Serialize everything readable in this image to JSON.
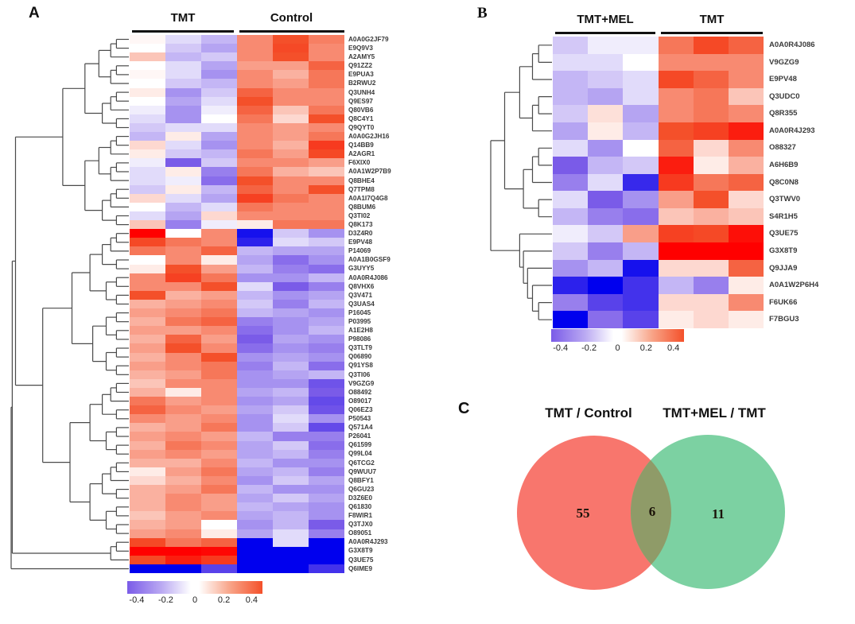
{
  "figure": {
    "panels": {
      "a_label": "A",
      "b_label": "B",
      "c_label": "C"
    }
  },
  "chart_data": [
    {
      "type": "heatmap",
      "panel": "A",
      "col_groups": [
        {
          "label": "TMT",
          "cols": 3
        },
        {
          "label": "Control",
          "cols": 3
        }
      ],
      "rows": [
        "A0A0G2JF79",
        "E9Q9V3",
        "A2AMY5",
        "Q91ZZ2",
        "E9PUA3",
        "B2RWU2",
        "Q3UNH4",
        "Q9ES97",
        "Q80VB6",
        "Q8C4Y1",
        "Q9QYT0",
        "A0A0G2JH16",
        "Q14BB9",
        "A2AGR1",
        "F6XIX0",
        "A0A1W2P7B9",
        "Q8BHE4",
        "Q7TPM8",
        "A0A1I7Q4G8",
        "Q8BUM6",
        "Q3TI02",
        "Q8K173",
        "D3Z4R0",
        "E9PV48",
        "P14069",
        "A0A1B0GSF9",
        "G3UYY5",
        "A0A0R4J086",
        "Q8VHX6",
        "Q3V471",
        "Q3UAS4",
        "P16045",
        "P03995",
        "A1E2H8",
        "P98086",
        "Q3TLT9",
        "Q06890",
        "Q91YS8",
        "Q3TI06",
        "V9GZG9",
        "O88492",
        "O89017",
        "Q06EZ3",
        "P50543",
        "Q571A4",
        "P26041",
        "Q61599",
        "Q99L04",
        "Q6TCG2",
        "Q9WUU7",
        "Q8BFY1",
        "Q6GU23",
        "D3Z6E0",
        "Q61830",
        "F8WIR1",
        "Q3TJX0",
        "O89051",
        "A0A0R4J293",
        "G3X8T9",
        "Q3UE75",
        "Q6IME9"
      ],
      "values": [
        [
          0.02,
          -0.1,
          -0.2,
          0.3,
          0.45,
          0.33
        ],
        [
          0.0,
          -0.15,
          -0.25,
          0.3,
          0.5,
          0.3
        ],
        [
          0.15,
          -0.2,
          -0.15,
          0.3,
          0.45,
          0.3
        ],
        [
          0.0,
          -0.1,
          -0.25,
          0.25,
          0.25,
          0.4
        ],
        [
          0.02,
          -0.1,
          -0.3,
          0.3,
          0.2,
          0.35
        ],
        [
          0.0,
          -0.15,
          -0.2,
          0.3,
          0.25,
          0.35
        ],
        [
          0.05,
          -0.3,
          -0.15,
          0.4,
          0.3,
          0.3
        ],
        [
          0.0,
          -0.25,
          -0.1,
          0.45,
          0.3,
          0.3
        ],
        [
          -0.05,
          -0.3,
          -0.05,
          0.4,
          0.15,
          0.35
        ],
        [
          -0.1,
          -0.3,
          0.0,
          0.35,
          0.1,
          0.45
        ],
        [
          -0.15,
          -0.1,
          -0.1,
          0.3,
          0.25,
          0.3
        ],
        [
          -0.2,
          0.05,
          -0.25,
          0.3,
          0.25,
          0.35
        ],
        [
          0.1,
          -0.1,
          -0.3,
          0.3,
          0.2,
          0.6
        ],
        [
          0.05,
          -0.15,
          -0.2,
          0.35,
          0.25,
          0.5
        ],
        [
          -0.05,
          -0.45,
          -0.15,
          0.3,
          0.3,
          0.25
        ],
        [
          -0.1,
          0.05,
          -0.35,
          0.35,
          0.2,
          0.15
        ],
        [
          -0.1,
          -0.05,
          -0.4,
          0.45,
          0.3,
          0.3
        ],
        [
          -0.15,
          0.05,
          -0.2,
          0.4,
          0.3,
          0.45
        ],
        [
          0.1,
          -0.1,
          -0.25,
          0.55,
          0.35,
          0.3
        ],
        [
          0.0,
          -0.2,
          -0.1,
          0.35,
          0.3,
          0.3
        ],
        [
          -0.1,
          -0.25,
          0.1,
          0.3,
          0.3,
          0.3
        ],
        [
          0.15,
          -0.35,
          -0.05,
          0.05,
          0.35,
          0.35
        ],
        [
          1.0,
          0.0,
          0.3,
          -0.9,
          -0.15,
          -0.3
        ],
        [
          0.5,
          0.35,
          0.3,
          -0.8,
          -0.1,
          -0.15
        ],
        [
          0.35,
          0.3,
          0.4,
          -0.2,
          -0.25,
          -0.25
        ],
        [
          0.0,
          0.3,
          0.05,
          -0.25,
          -0.4,
          -0.3
        ],
        [
          0.05,
          0.45,
          0.25,
          -0.2,
          -0.35,
          -0.4
        ],
        [
          0.3,
          0.55,
          0.35,
          -0.3,
          -0.3,
          -0.2
        ],
        [
          0.3,
          0.3,
          0.45,
          -0.1,
          -0.45,
          -0.35
        ],
        [
          0.45,
          0.2,
          0.25,
          -0.2,
          -0.3,
          -0.25
        ],
        [
          0.2,
          0.25,
          0.3,
          -0.15,
          -0.35,
          -0.2
        ],
        [
          0.25,
          0.3,
          0.35,
          -0.2,
          -0.25,
          -0.3
        ],
        [
          0.2,
          0.35,
          0.4,
          -0.35,
          -0.3,
          -0.25
        ],
        [
          0.25,
          0.25,
          0.3,
          -0.4,
          -0.3,
          -0.2
        ],
        [
          0.2,
          0.4,
          0.25,
          -0.45,
          -0.25,
          -0.3
        ],
        [
          0.25,
          0.45,
          0.3,
          -0.4,
          -0.3,
          -0.35
        ],
        [
          0.2,
          0.3,
          0.45,
          -0.3,
          -0.25,
          -0.3
        ],
        [
          0.25,
          0.3,
          0.35,
          -0.35,
          -0.2,
          -0.4
        ],
        [
          0.2,
          0.25,
          0.35,
          -0.3,
          -0.25,
          -0.2
        ],
        [
          0.15,
          0.3,
          0.3,
          -0.3,
          -0.3,
          -0.5
        ],
        [
          0.2,
          0.05,
          0.3,
          -0.25,
          -0.2,
          -0.45
        ],
        [
          0.35,
          0.25,
          0.3,
          -0.3,
          -0.25,
          -0.55
        ],
        [
          0.4,
          0.3,
          0.25,
          -0.25,
          -0.15,
          -0.5
        ],
        [
          0.3,
          0.25,
          0.3,
          -0.3,
          -0.1,
          -0.3
        ],
        [
          0.2,
          0.25,
          0.35,
          -0.3,
          -0.15,
          -0.55
        ],
        [
          0.25,
          0.3,
          0.25,
          -0.2,
          -0.35,
          -0.35
        ],
        [
          0.2,
          0.35,
          0.3,
          -0.25,
          -0.15,
          -0.4
        ],
        [
          0.25,
          0.3,
          0.25,
          -0.25,
          -0.2,
          -0.35
        ],
        [
          0.2,
          0.2,
          0.3,
          -0.2,
          -0.3,
          -0.3
        ],
        [
          0.05,
          0.25,
          0.35,
          -0.25,
          -0.2,
          -0.35
        ],
        [
          0.1,
          0.2,
          0.3,
          -0.3,
          -0.15,
          -0.25
        ],
        [
          0.2,
          0.25,
          0.35,
          -0.2,
          -0.3,
          -0.3
        ],
        [
          0.2,
          0.3,
          0.25,
          -0.25,
          -0.15,
          -0.25
        ],
        [
          0.2,
          0.3,
          0.25,
          -0.2,
          -0.25,
          -0.3
        ],
        [
          0.15,
          0.25,
          0.3,
          -0.25,
          -0.2,
          -0.3
        ],
        [
          0.2,
          0.25,
          0.0,
          -0.3,
          -0.2,
          -0.45
        ],
        [
          0.25,
          0.3,
          0.05,
          -0.25,
          -0.1,
          -0.35
        ],
        [
          0.5,
          0.35,
          0.4,
          -1.0,
          -0.1,
          -1.0
        ],
        [
          1.0,
          1.0,
          0.95,
          -1.0,
          -1.0,
          -1.0
        ],
        [
          0.5,
          0.8,
          0.6,
          -1.0,
          -1.0,
          -1.0
        ],
        [
          -1.0,
          -1.0,
          -0.6,
          -1.0,
          -1.0,
          -0.7
        ]
      ],
      "colorscale": {
        "min": -0.4,
        "max": 0.4,
        "ticks": [
          "-0.4",
          "-0.2",
          "0",
          "0.2",
          "0.4"
        ],
        "neg_end": "#7a5be8",
        "neg_extreme": "#0000ee",
        "pos_end": "#f4502a",
        "pos_extreme": "#ff0000"
      }
    },
    {
      "type": "heatmap",
      "panel": "B",
      "col_groups": [
        {
          "label": "TMT+MEL",
          "cols": 3
        },
        {
          "label": "TMT",
          "cols": 3
        }
      ],
      "rows": [
        "A0A0R4J086",
        "V9GZG9",
        "E9PV48",
        "Q3UDC0",
        "Q8R355",
        "A0A0R4J293",
        "O88327",
        "A6H6B9",
        "Q8C0N8",
        "Q3TWV0",
        "S4R1H5",
        "Q3UE75",
        "G3X8T9",
        "Q9JJA9",
        "A0A1W2P6H4",
        "F6UK66",
        "F7BGU3"
      ],
      "values": [
        [
          -0.15,
          -0.05,
          -0.05,
          0.35,
          0.5,
          0.4
        ],
        [
          -0.1,
          -0.1,
          0.0,
          0.3,
          0.3,
          0.3
        ],
        [
          -0.2,
          -0.15,
          -0.1,
          0.5,
          0.4,
          0.3
        ],
        [
          -0.2,
          -0.25,
          -0.1,
          0.3,
          0.35,
          0.15
        ],
        [
          -0.15,
          0.08,
          -0.25,
          0.3,
          0.35,
          0.3
        ],
        [
          -0.25,
          0.05,
          -0.2,
          0.45,
          0.55,
          0.8
        ],
        [
          -0.1,
          -0.3,
          0.0,
          0.4,
          0.1,
          0.3
        ],
        [
          -0.45,
          -0.2,
          -0.15,
          0.8,
          0.05,
          0.2
        ],
        [
          -0.35,
          -0.1,
          -0.75,
          0.6,
          0.35,
          0.4
        ],
        [
          -0.1,
          -0.45,
          -0.3,
          0.25,
          0.45,
          0.1
        ],
        [
          -0.2,
          -0.35,
          -0.4,
          0.15,
          0.2,
          0.15
        ],
        [
          -0.05,
          -0.15,
          0.25,
          0.55,
          0.5,
          0.9
        ],
        [
          -0.15,
          -0.35,
          -0.2,
          1.0,
          1.0,
          1.0
        ],
        [
          -0.3,
          -0.2,
          -0.9,
          0.1,
          0.1,
          0.4
        ],
        [
          -0.8,
          -1.0,
          -0.7,
          -0.2,
          -0.35,
          0.05
        ],
        [
          -0.35,
          -0.6,
          -0.7,
          0.1,
          0.1,
          0.3
        ],
        [
          -1.0,
          -0.4,
          -0.6,
          0.05,
          0.1,
          0.05
        ]
      ],
      "colorscale": {
        "min": -0.4,
        "max": 0.4,
        "ticks": [
          "-0.4",
          "-0.2",
          "0",
          "0.2",
          "0.4"
        ],
        "neg_end": "#7a5be8",
        "neg_extreme": "#0000ee",
        "pos_end": "#f4502a",
        "pos_extreme": "#ff0000"
      }
    },
    {
      "type": "venn",
      "sets": [
        {
          "label": "TMT / Control",
          "count": 55,
          "color": "#f8766d"
        },
        {
          "label": "TMT+MEL / TMT",
          "count": 11,
          "color": "#7cd1a2"
        }
      ],
      "overlap_count": 6,
      "overlap_color": "#8f9b68"
    }
  ]
}
